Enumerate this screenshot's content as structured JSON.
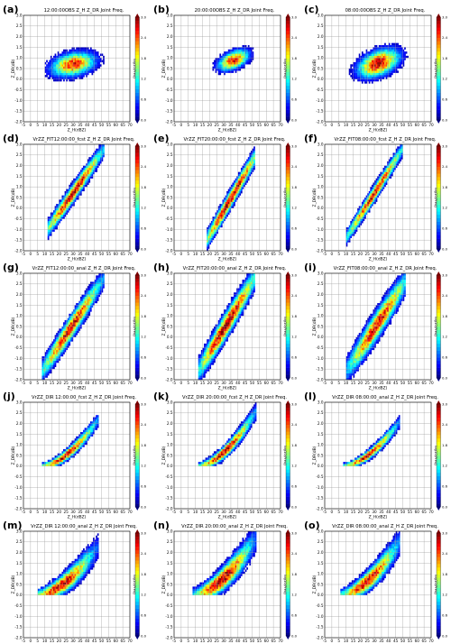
{
  "figure": {
    "xlabel": "Z_H(dBZ)",
    "ylabel": "Z_DR(dB)",
    "colorbar_label": "log10(Freq)",
    "colorbar_ticks_display": [
      "0.0",
      "0.6",
      "1.2",
      "1.8",
      "2.4",
      "3.0"
    ]
  },
  "chart_data": [
    {
      "panel": "(a)",
      "type": "heatmap",
      "title": "12:00:00OBS Z_H Z_DR Joint Freq.",
      "xlabel": "Z_H(dBZ)",
      "ylabel": "Z_DR(dB)",
      "xlim": [
        -5,
        70
      ],
      "ylim": [
        -2,
        3
      ],
      "vmin": 0,
      "vmax": 3,
      "grid": true,
      "shape": "blob",
      "center": [
        30,
        0.7
      ],
      "spread": [
        13,
        0.45
      ],
      "peak": 2.6,
      "xmin": 10,
      "xmax": 55,
      "curve": 0.011
    },
    {
      "panel": "(b)",
      "type": "heatmap",
      "title": "20:00:00OBS Z_H Z_DR Joint Freq.",
      "xlabel": "Z_H(dBZ)",
      "ylabel": "Z_DR(dB)",
      "xlim": [
        -5,
        70
      ],
      "ylim": [
        -2,
        3
      ],
      "vmin": 0,
      "vmax": 3,
      "grid": true,
      "shape": "blob",
      "center": [
        37,
        0.9
      ],
      "spread": [
        9,
        0.35
      ],
      "peak": 2.7,
      "xmin": 20,
      "xmax": 52,
      "curve": 0.022
    },
    {
      "panel": "(c)",
      "type": "heatmap",
      "title": "08:00:00OBS Z_H Z_DR Joint Freq.",
      "xlabel": "Z_H(dBZ)",
      "ylabel": "Z_DR(dB)",
      "xlim": [
        -5,
        70
      ],
      "ylim": [
        -2,
        3
      ],
      "vmin": 0,
      "vmax": 3,
      "grid": true,
      "shape": "blob",
      "center": [
        33,
        0.75
      ],
      "spread": [
        12,
        0.5
      ],
      "peak": 2.9,
      "xmin": 8,
      "xmax": 55,
      "curve": 0.02
    },
    {
      "panel": "(d)",
      "type": "heatmap",
      "title": "VrZZ_FIT12:00:00_fcst Z_H Z_DR Joint Freq.",
      "xlabel": "Z_H(dBZ)",
      "ylabel": "Z_DR(dB)",
      "xlim": [
        -5,
        70
      ],
      "ylim": [
        -2,
        3
      ],
      "vmin": 0,
      "vmax": 3,
      "grid": true,
      "shape": "band",
      "x0": 12,
      "y0": -1.0,
      "slope": 0.095,
      "halfwidth": 0.35,
      "xmin": 12,
      "xmax": 52,
      "peak": 2.8,
      "peakx": 30
    },
    {
      "panel": "(e)",
      "type": "heatmap",
      "title": "VrZZ_FIT20:00:00_fcst Z_H Z_DR Joint Freq.",
      "xlabel": "Z_H(dBZ)",
      "ylabel": "Z_DR(dB)",
      "xlim": [
        -5,
        70
      ],
      "ylim": [
        -2,
        3
      ],
      "vmin": 0,
      "vmax": 3,
      "grid": true,
      "shape": "band",
      "x0": 18,
      "y0": -1.5,
      "slope": 0.115,
      "halfwidth": 0.35,
      "xmin": 18,
      "xmax": 52,
      "peak": 2.9,
      "peakx": 35
    },
    {
      "panel": "(f)",
      "type": "heatmap",
      "title": "VrZZ_FIT08:00:00_fcst Z_H Z_DR Joint Freq.",
      "xlabel": "Z_H(dBZ)",
      "ylabel": "Z_DR(dB)",
      "xlim": [
        -5,
        70
      ],
      "ylim": [
        -2,
        3
      ],
      "vmin": 0,
      "vmax": 3,
      "grid": true,
      "shape": "band",
      "x0": 10,
      "y0": -1.4,
      "slope": 0.105,
      "halfwidth": 0.3,
      "xmin": 10,
      "xmax": 50,
      "peak": 2.7,
      "peakx": 30
    },
    {
      "panel": "(g)",
      "type": "heatmap",
      "title": "VrZZ_FIT12:00:00_anal Z_H Z_DR Joint Freq.",
      "xlabel": "Z_H(dBZ)",
      "ylabel": "Z_DR(dB)",
      "xlim": [
        -5,
        70
      ],
      "ylim": [
        -2,
        3
      ],
      "vmin": 0,
      "vmax": 3,
      "grid": true,
      "shape": "band",
      "x0": 8,
      "y0": -1.6,
      "slope": 0.1,
      "halfwidth": 0.45,
      "xmin": 8,
      "xmax": 52,
      "peak": 2.8,
      "peakx": 28
    },
    {
      "panel": "(h)",
      "type": "heatmap",
      "title": "VrZZ_FIT20:00:00_anal Z_H Z_DR Joint Freq.",
      "xlabel": "Z_H(dBZ)",
      "ylabel": "Z_DR(dB)",
      "xlim": [
        -5,
        70
      ],
      "ylim": [
        -2,
        3
      ],
      "vmin": 0,
      "vmax": 3,
      "grid": true,
      "shape": "band",
      "x0": 12,
      "y0": -1.6,
      "slope": 0.11,
      "halfwidth": 0.5,
      "xmin": 12,
      "xmax": 52,
      "peak": 2.9,
      "peakx": 32
    },
    {
      "panel": "(i)",
      "type": "heatmap",
      "title": "VrZZ_FIT08:00:00_anal Z_H Z_DR Joint Freq.",
      "xlabel": "Z_H(dBZ)",
      "ylabel": "Z_DR(dB)",
      "xlim": [
        -5,
        70
      ],
      "ylim": [
        -2,
        3
      ],
      "vmin": 0,
      "vmax": 3,
      "grid": true,
      "shape": "band",
      "x0": 10,
      "y0": -1.6,
      "slope": 0.1,
      "halfwidth": 0.55,
      "xmin": 10,
      "xmax": 52,
      "peak": 2.7,
      "peakx": 32
    },
    {
      "panel": "(j)",
      "type": "heatmap",
      "title": "VrZZ_DIR 12:00:00_fcst Z_H Z_DR Joint Freq.",
      "xlabel": "Z_H(dBZ)",
      "ylabel": "Z_DR(dB)",
      "xlim": [
        -5,
        70
      ],
      "ylim": [
        -2,
        3
      ],
      "vmin": 0,
      "vmax": 3,
      "grid": true,
      "shape": "curve",
      "xstart": 8,
      "xend": 48,
      "ytop": 2.2,
      "halfwidth": 0.22,
      "peak": 2.8,
      "peakx": 25
    },
    {
      "panel": "(k)",
      "type": "heatmap",
      "title": "VrZZ_DIR 20:00:00_fcst Z_H Z_DR Joint Freq.",
      "xlabel": "Z_H(dBZ)",
      "ylabel": "Z_DR(dB)",
      "xlim": [
        -5,
        70
      ],
      "ylim": [
        -2,
        3
      ],
      "vmin": 0,
      "vmax": 3,
      "grid": true,
      "shape": "curve",
      "xstart": 12,
      "xend": 53,
      "ytop": 2.6,
      "halfwidth": 0.25,
      "peak": 2.9,
      "peakx": 30
    },
    {
      "panel": "(l)",
      "type": "heatmap",
      "title": "VrZZ_DIR 08:00:00_anal Z_H Z_DR Joint Freq.",
      "xlabel": "Z_H(dBZ)",
      "ylabel": "Z_DR(dB)",
      "xlim": [
        -5,
        70
      ],
      "ylim": [
        -2,
        3
      ],
      "vmin": 0,
      "vmax": 3,
      "grid": true,
      "shape": "curve",
      "xstart": 8,
      "xend": 48,
      "ytop": 2.1,
      "halfwidth": 0.2,
      "peak": 2.7,
      "peakx": 25
    },
    {
      "panel": "(m)",
      "type": "heatmap",
      "title": "VrZZ_DIR 12:00:00_anal Z_H Z_DR Joint Freq.",
      "xlabel": "Z_H(dBZ)",
      "ylabel": "Z_DR(dB)",
      "xlim": [
        -5,
        70
      ],
      "ylim": [
        -2,
        3
      ],
      "vmin": 0,
      "vmax": 3,
      "grid": true,
      "shape": "curve",
      "xstart": 5,
      "xend": 48,
      "ytop": 2.3,
      "halfwidth": 0.4,
      "peak": 2.9,
      "peakx": 22
    },
    {
      "panel": "(n)",
      "type": "heatmap",
      "title": "VrZZ_DIR 20:00:00_anal Z_H Z_DR Joint Freq.",
      "xlabel": "Z_H(dBZ)",
      "ylabel": "Z_DR(dB)",
      "xlim": [
        -5,
        70
      ],
      "ylim": [
        -2,
        3
      ],
      "vmin": 0,
      "vmax": 3,
      "grid": true,
      "shape": "curve",
      "xstart": 8,
      "xend": 53,
      "ytop": 2.7,
      "halfwidth": 0.45,
      "peak": 3.0,
      "peakx": 28
    },
    {
      "panel": "(o)",
      "type": "heatmap",
      "title": "VrZZ_DIR 08:00:00_anal Z_H Z_DR Joint Freq.",
      "xlabel": "Z_H(dBZ)",
      "ylabel": "Z_DR(dB)",
      "xlim": [
        -5,
        70
      ],
      "ylim": [
        -2,
        3
      ],
      "vmin": 0,
      "vmax": 3,
      "grid": true,
      "shape": "curve",
      "xstart": 6,
      "xend": 48,
      "ytop": 2.5,
      "halfwidth": 0.4,
      "peak": 2.8,
      "peakx": 25
    }
  ]
}
